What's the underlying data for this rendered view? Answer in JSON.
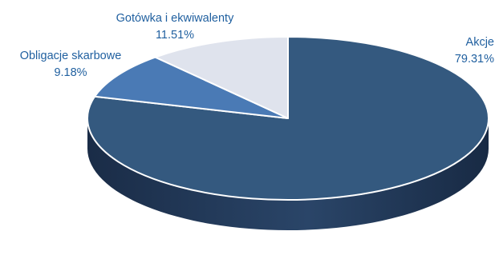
{
  "chart_data": {
    "type": "pie",
    "style": "3d",
    "slices": [
      {
        "label": "Akcje",
        "value": 79.31,
        "value_text": "79.31%",
        "color": "#34597f"
      },
      {
        "label": "Obligacje skarbowe",
        "value": 9.18,
        "value_text": "9.18%",
        "color": "#4a7ab5"
      },
      {
        "label": "Gotówka i ekwiwalenty",
        "value": 11.51,
        "value_text": "11.51%",
        "color": "#dfe3ed"
      }
    ],
    "side_color": "#1e3350"
  }
}
